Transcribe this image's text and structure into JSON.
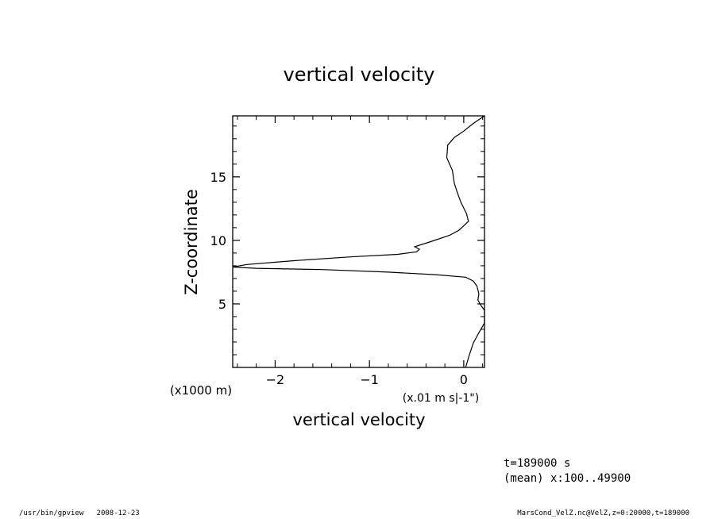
{
  "chart_data": {
    "type": "line",
    "title": "vertical velocity",
    "xlabel": "vertical velocity",
    "ylabel": "Z-coordinate",
    "x_unit_label": "(x.01 m s|-1\")",
    "y_unit_label": "(x1000 m)",
    "xlim": [
      -2.45,
      0.22
    ],
    "ylim": [
      0.0,
      19.8
    ],
    "x_ticks": [
      -2,
      -1,
      0
    ],
    "x_tick_labels": [
      "−2",
      "−1",
      "0"
    ],
    "y_ticks": [
      5,
      10,
      15
    ],
    "y_tick_labels": [
      "5",
      "10",
      "15"
    ],
    "grid": false,
    "series": [
      {
        "x": [
          0.02,
          0.06,
          0.1,
          0.15,
          0.22,
          0.22,
          0.18,
          0.15,
          0.16,
          0.14,
          0.1,
          0.02,
          -0.3,
          -0.8,
          -1.5,
          -2.2,
          -2.45,
          -2.3,
          -1.8,
          -1.2,
          -0.7,
          -0.5,
          -0.47,
          -0.52,
          -0.35,
          -0.15,
          -0.05,
          0.05,
          0.03,
          -0.03,
          -0.07,
          -0.1,
          -0.12,
          -0.18,
          -0.17,
          -0.1,
          0.0,
          0.1,
          0.22
        ],
        "y": [
          0.0,
          1.0,
          1.9,
          2.6,
          3.5,
          4.5,
          4.9,
          5.3,
          5.8,
          6.4,
          6.8,
          7.1,
          7.3,
          7.5,
          7.7,
          7.8,
          7.9,
          8.1,
          8.4,
          8.7,
          8.9,
          9.1,
          9.3,
          9.5,
          9.9,
          10.4,
          10.8,
          11.5,
          12.1,
          13.0,
          13.8,
          14.5,
          15.5,
          16.5,
          17.5,
          18.1,
          18.6,
          19.2,
          19.8
        ]
      }
    ]
  },
  "annotations": {
    "time_label": "t=189000 s",
    "mean_label": "(mean) x:100..49900"
  },
  "footer": {
    "left": "/usr/bin/gpview   2008-12-23",
    "right": "MarsCond_VelZ.nc@VelZ,z=0:20000,t=189000"
  }
}
